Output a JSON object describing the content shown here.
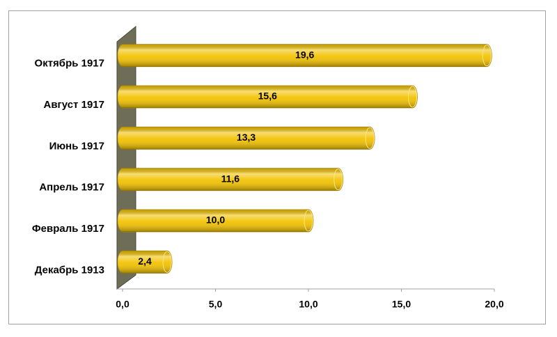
{
  "chart_data": {
    "type": "bar",
    "orientation": "horizontal",
    "categories": [
      "Октябрь 1917",
      "Август 1917",
      "Июнь 1917",
      "Апрель 1917",
      "Февраль 1917",
      "Декабрь 1913"
    ],
    "values": [
      19.6,
      15.6,
      13.3,
      11.6,
      10.0,
      2.4
    ],
    "value_labels": [
      "19,6",
      "15,6",
      "13,3",
      "11,6",
      "10,0",
      "2,4"
    ],
    "color": "#f2c200",
    "xlim": [
      0,
      20
    ],
    "xticks": [
      {
        "value": 0,
        "label": "0,0"
      },
      {
        "value": 5,
        "label": "5,0"
      },
      {
        "value": 10,
        "label": "10,0"
      },
      {
        "value": 15,
        "label": "15,0"
      },
      {
        "value": 20,
        "label": "20,0"
      }
    ],
    "grid": false
  }
}
